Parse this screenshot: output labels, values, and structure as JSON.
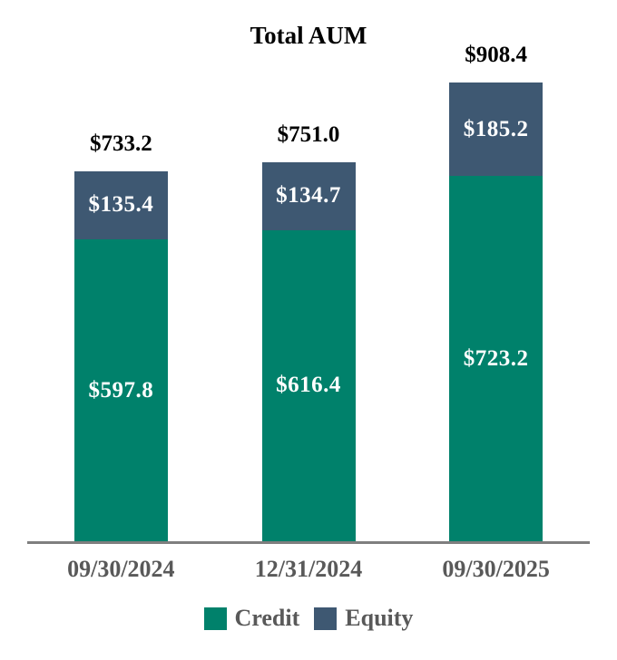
{
  "chart_data": {
    "type": "bar",
    "stacked": true,
    "title": "Total AUM",
    "categories": [
      "09/30/2024",
      "12/31/2024",
      "09/30/2025"
    ],
    "series": [
      {
        "name": "Credit",
        "color": "#00816B",
        "values": [
          597.8,
          616.4,
          723.2
        ]
      },
      {
        "name": "Equity",
        "color": "#3E5872",
        "values": [
          135.4,
          134.7,
          185.2
        ]
      }
    ],
    "totals": [
      733.2,
      751.0,
      908.4
    ],
    "value_prefix": "$",
    "value_decimals": 1,
    "ylim": [
      0,
      1000
    ],
    "grid": false,
    "legend_position": "bottom"
  },
  "colors": {
    "axis_line": "#7F7F7F",
    "tick_label": "#595959",
    "legend_label": "#595959",
    "total_label": "#000000",
    "segment_label": "#FFFFFF"
  }
}
